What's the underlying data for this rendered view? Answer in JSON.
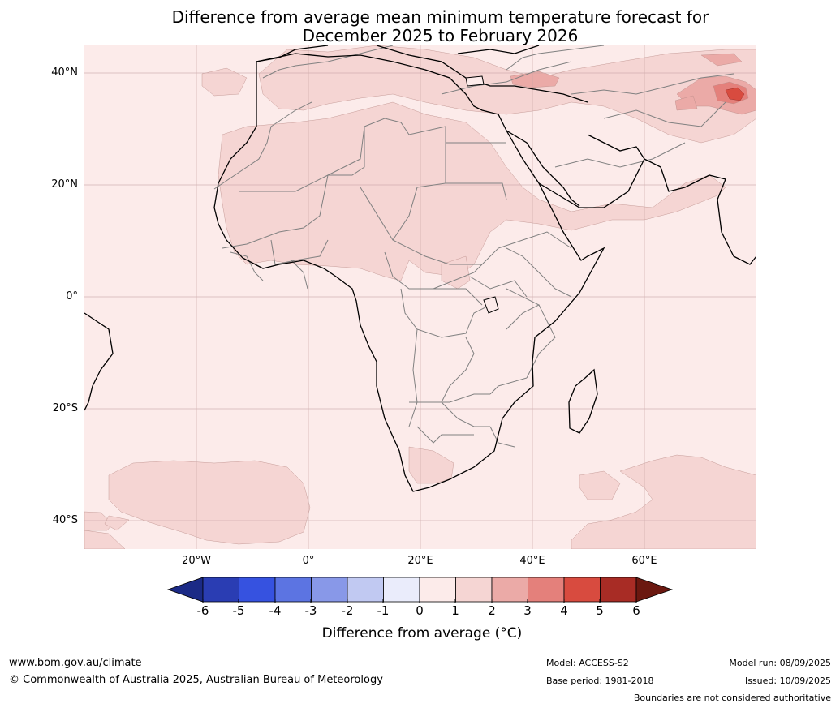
{
  "title": {
    "line1": "Difference from average mean minimum temperature forecast for",
    "line2": "December 2025 to February 2026"
  },
  "map": {
    "lat_labels": [
      "40°N",
      "20°N",
      "0°",
      "20°S",
      "40°S"
    ],
    "lon_labels": [
      "20°W",
      "0°",
      "20°E",
      "40°E",
      "60°E"
    ],
    "background_color": "#fcebea",
    "land_color": "#fcebea",
    "anomaly_1_2_color": "#f5d5d3",
    "anomaly_2_3_color": "#ebaaa7",
    "anomaly_3_4_color": "#e4807b",
    "anomaly_4_5_color": "#d84b3f",
    "coastline_color": "#000000",
    "border_color": "#808080"
  },
  "colorbar": {
    "ticks": [
      "-6",
      "-5",
      "-4",
      "-3",
      "-2",
      "-1",
      "0",
      "1",
      "2",
      "3",
      "4",
      "5",
      "6"
    ],
    "colors": [
      "#1b2a86",
      "#2a3db3",
      "#3652e0",
      "#5c74e2",
      "#8898e8",
      "#c1c9f2",
      "#eaecfb",
      "#fcebea",
      "#f5d5d3",
      "#ebaaa7",
      "#e4807b",
      "#d84b3f",
      "#a82c25",
      "#6b1810"
    ],
    "label": "Difference from average (°C)"
  },
  "footer": {
    "url": "www.bom.gov.au/climate",
    "copyright": "© Commonwealth of Australia 2025, Australian Bureau of Meteorology",
    "model": "Model: ACCESS-S2",
    "base_period": "Base period: 1981-2018",
    "model_run": "Model run: 08/09/2025",
    "issued": "Issued: 10/09/2025",
    "disclaimer": "Boundaries are not considered authoritative"
  }
}
